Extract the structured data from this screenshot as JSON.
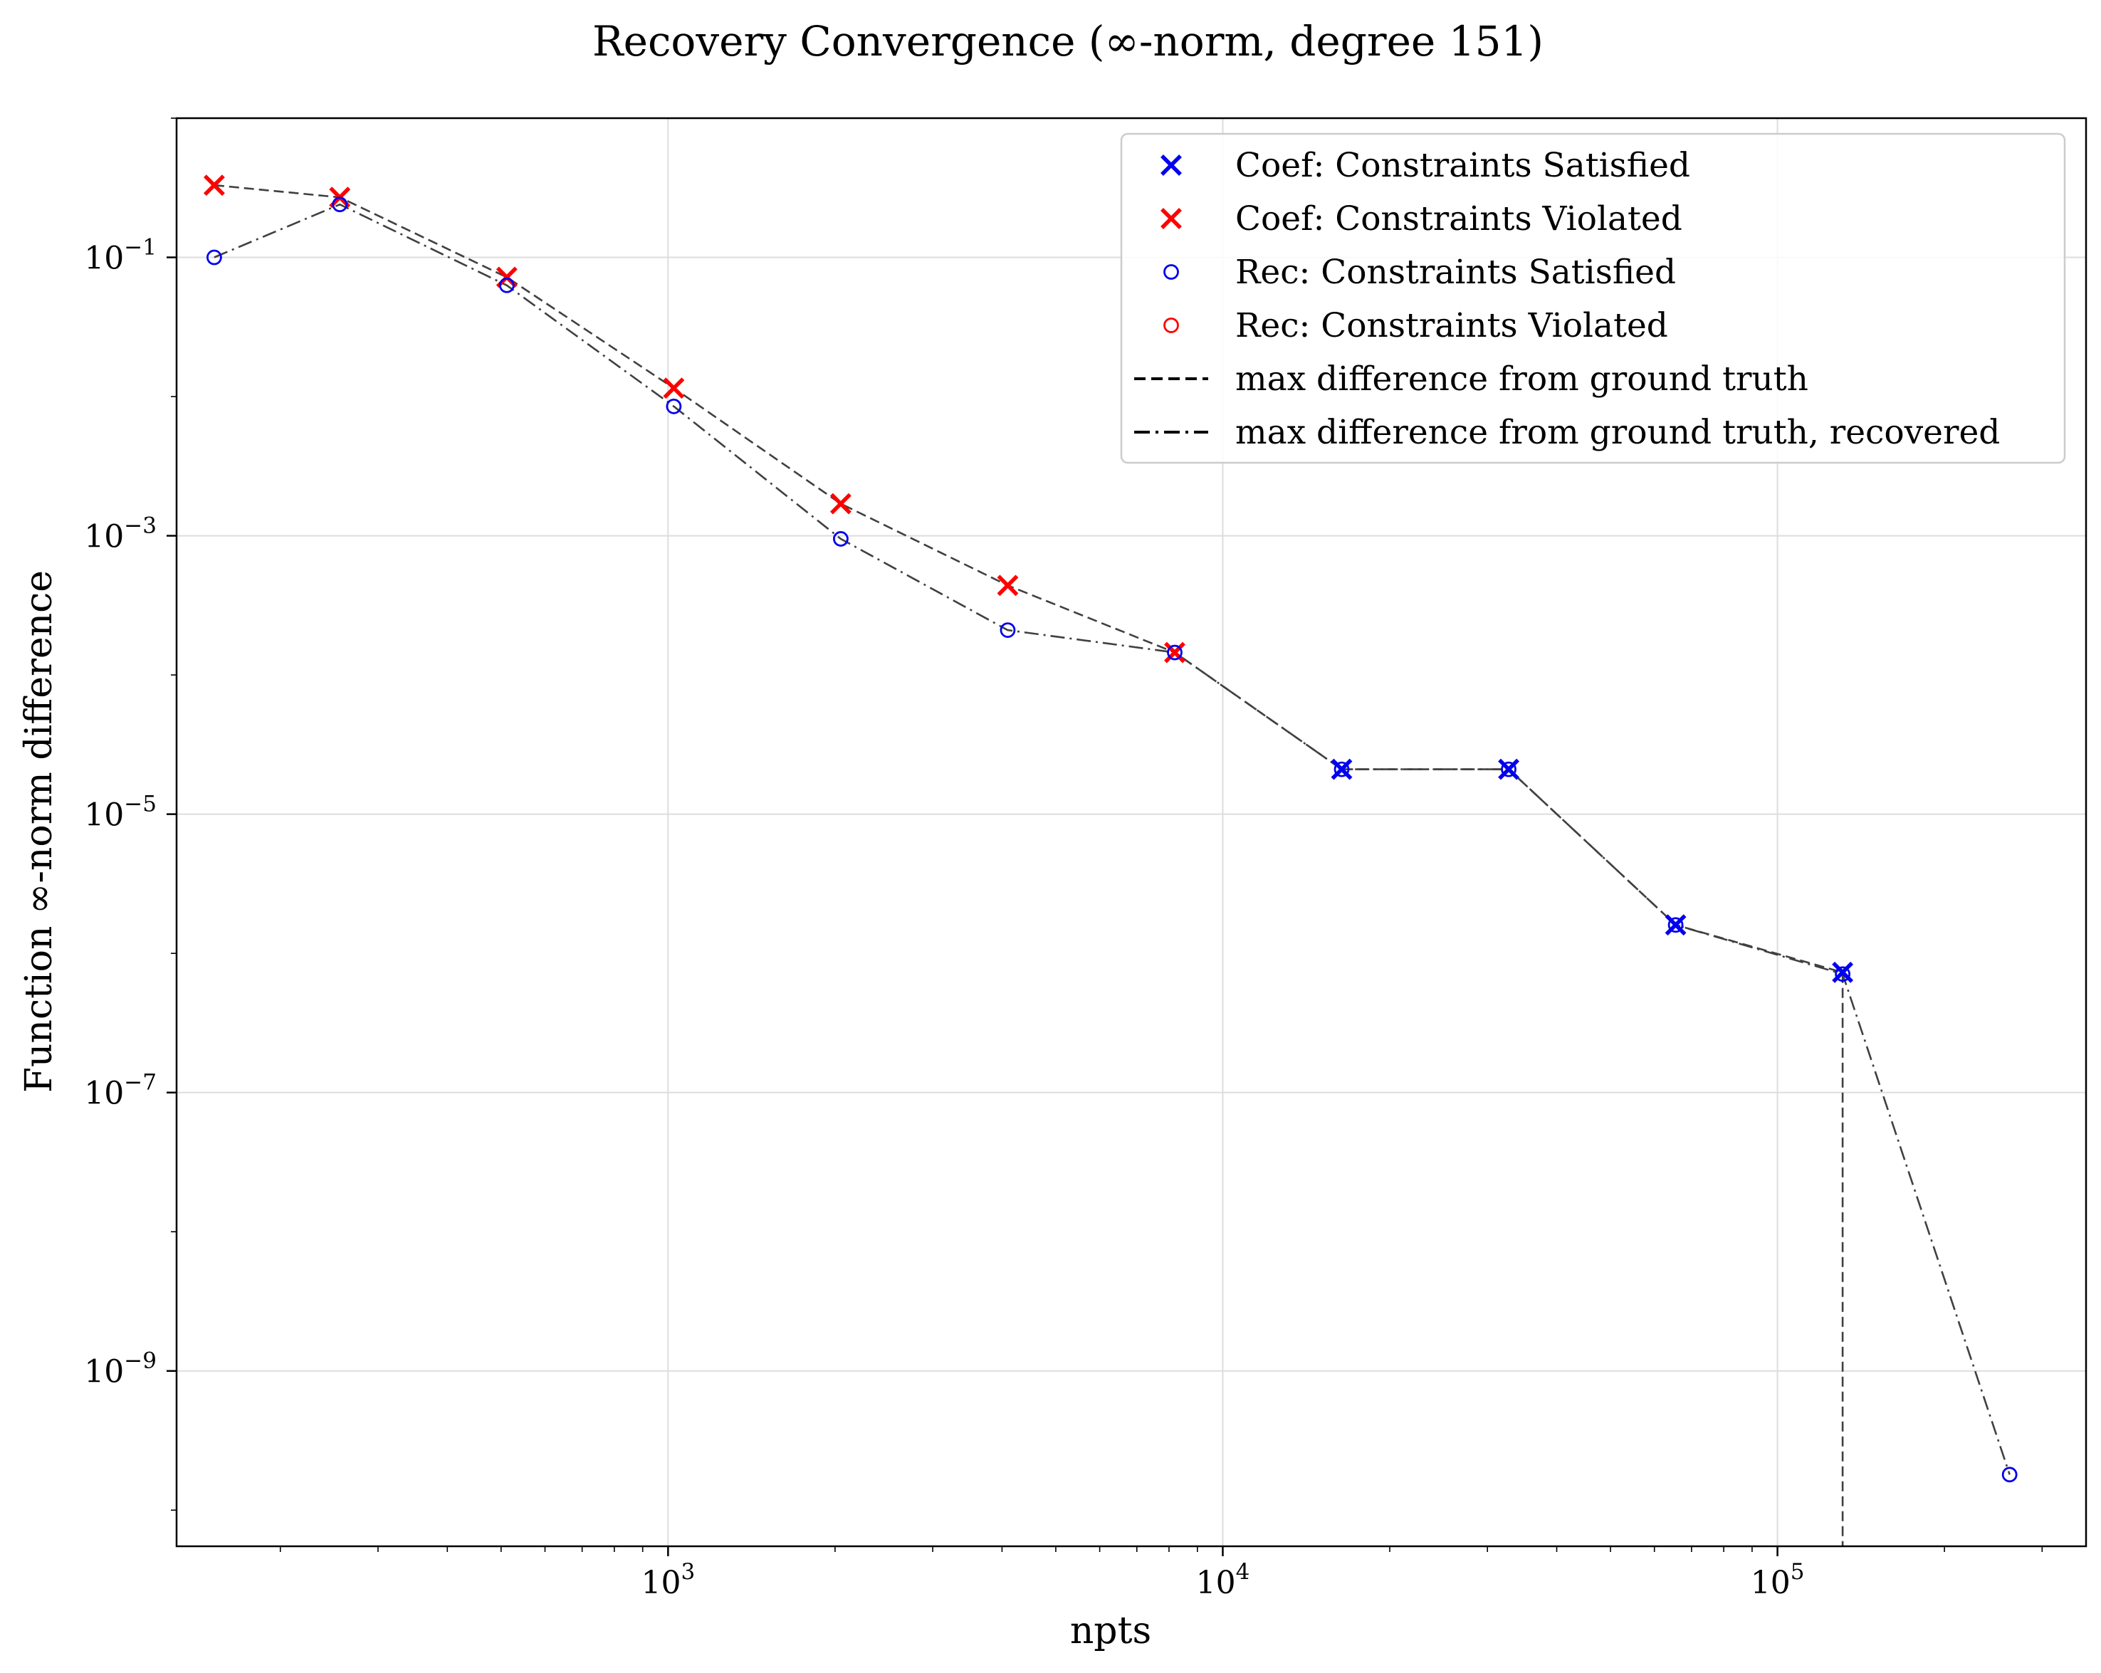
{
  "chart_data": {
    "type": "line",
    "title": "Recovery Convergence (∞-norm, degree 151)",
    "xlabel": "npts",
    "ylabel": "Function ∞-norm difference",
    "xscale": "log",
    "yscale": "log",
    "xlim": [
      130,
      360000
    ],
    "ylim": [
      5.5e-11,
      1.0
    ],
    "grid": true,
    "legend_position": "upper right",
    "x_ticks": [
      {
        "value": 1000,
        "label": "10",
        "exp": "3"
      },
      {
        "value": 10000,
        "label": "10",
        "exp": "4"
      },
      {
        "value": 100000,
        "label": "10",
        "exp": "5"
      }
    ],
    "y_ticks": [
      {
        "value": 0.1,
        "label": "10",
        "exp": "−1"
      },
      {
        "value": 0.001,
        "label": "10",
        "exp": "−3"
      },
      {
        "value": 1e-05,
        "label": "10",
        "exp": "−5"
      },
      {
        "value": 1e-07,
        "label": "10",
        "exp": "−7"
      },
      {
        "value": 1e-09,
        "label": "10",
        "exp": "−9"
      }
    ],
    "series": [
      {
        "name": "max difference from ground truth",
        "style": "dashed",
        "color": "#404040",
        "points": [
          [
            152,
            0.33
          ],
          [
            256,
            0.27
          ],
          [
            512,
            0.072
          ],
          [
            1024,
            0.0115
          ],
          [
            2048,
            0.0017
          ],
          [
            4096,
            0.00044
          ],
          [
            8192,
            0.000145
          ],
          [
            16384,
            2.1e-05
          ],
          [
            32768,
            2.1e-05
          ],
          [
            65536,
            1.6e-06
          ],
          [
            131072,
            7.3e-07
          ],
          [
            131072,
            5.5e-11
          ]
        ]
      },
      {
        "name": "max difference from ground truth, recovered",
        "style": "dashdot",
        "color": "#404040",
        "points": [
          [
            152,
            0.1
          ],
          [
            256,
            0.24
          ],
          [
            512,
            0.063
          ],
          [
            1024,
            0.0085
          ],
          [
            2048,
            0.00095
          ],
          [
            4096,
            0.00021
          ],
          [
            8192,
            0.000145
          ],
          [
            16384,
            2.1e-05
          ],
          [
            32768,
            2.1e-05
          ],
          [
            65536,
            1.6e-06
          ],
          [
            131072,
            7.1e-07
          ],
          [
            262144,
            1.8e-10
          ]
        ]
      }
    ],
    "markers": {
      "coef_satisfied": {
        "name": "Coef: Constraints Satisfied",
        "color": "#0000ee",
        "shape": "x",
        "points": [
          [
            16384,
            2.1e-05
          ],
          [
            32768,
            2.1e-05
          ],
          [
            65536,
            1.6e-06
          ],
          [
            131072,
            7.3e-07
          ]
        ]
      },
      "coef_violated": {
        "name": "Coef: Constraints Violated",
        "color": "#ff0000",
        "shape": "x",
        "points": [
          [
            152,
            0.33
          ],
          [
            256,
            0.27
          ],
          [
            512,
            0.072
          ],
          [
            1024,
            0.0115
          ],
          [
            2048,
            0.0017
          ],
          [
            4096,
            0.00044
          ],
          [
            8192,
            0.000145
          ]
        ]
      },
      "rec_satisfied": {
        "name": "Rec: Constraints Satisfied",
        "color": "#0000ee",
        "shape": "circle",
        "points": [
          [
            152,
            0.1
          ],
          [
            256,
            0.24
          ],
          [
            512,
            0.063
          ],
          [
            1024,
            0.0085
          ],
          [
            2048,
            0.00095
          ],
          [
            4096,
            0.00021
          ],
          [
            8192,
            0.000145
          ],
          [
            16384,
            2.1e-05
          ],
          [
            32768,
            2.1e-05
          ],
          [
            65536,
            1.6e-06
          ],
          [
            131072,
            7.1e-07
          ],
          [
            262144,
            1.8e-10
          ]
        ]
      },
      "rec_violated": {
        "name": "Rec: Constraints Violated",
        "color": "#ff0000",
        "shape": "circle",
        "points": []
      }
    },
    "legend": [
      {
        "label": "Coef: Constraints Satisfied",
        "kind": "x",
        "color": "#0000ee"
      },
      {
        "label": "Coef: Constraints Violated",
        "kind": "x",
        "color": "#ff0000"
      },
      {
        "label": "Rec: Constraints Satisfied",
        "kind": "circle",
        "color": "#0000ee"
      },
      {
        "label": "Rec: Constraints Violated",
        "kind": "circle",
        "color": "#ff0000"
      },
      {
        "label": "max difference from ground truth",
        "kind": "dashed",
        "color": "#000000"
      },
      {
        "label": "max difference from ground truth, recovered",
        "kind": "dashdot",
        "color": "#000000"
      }
    ]
  }
}
